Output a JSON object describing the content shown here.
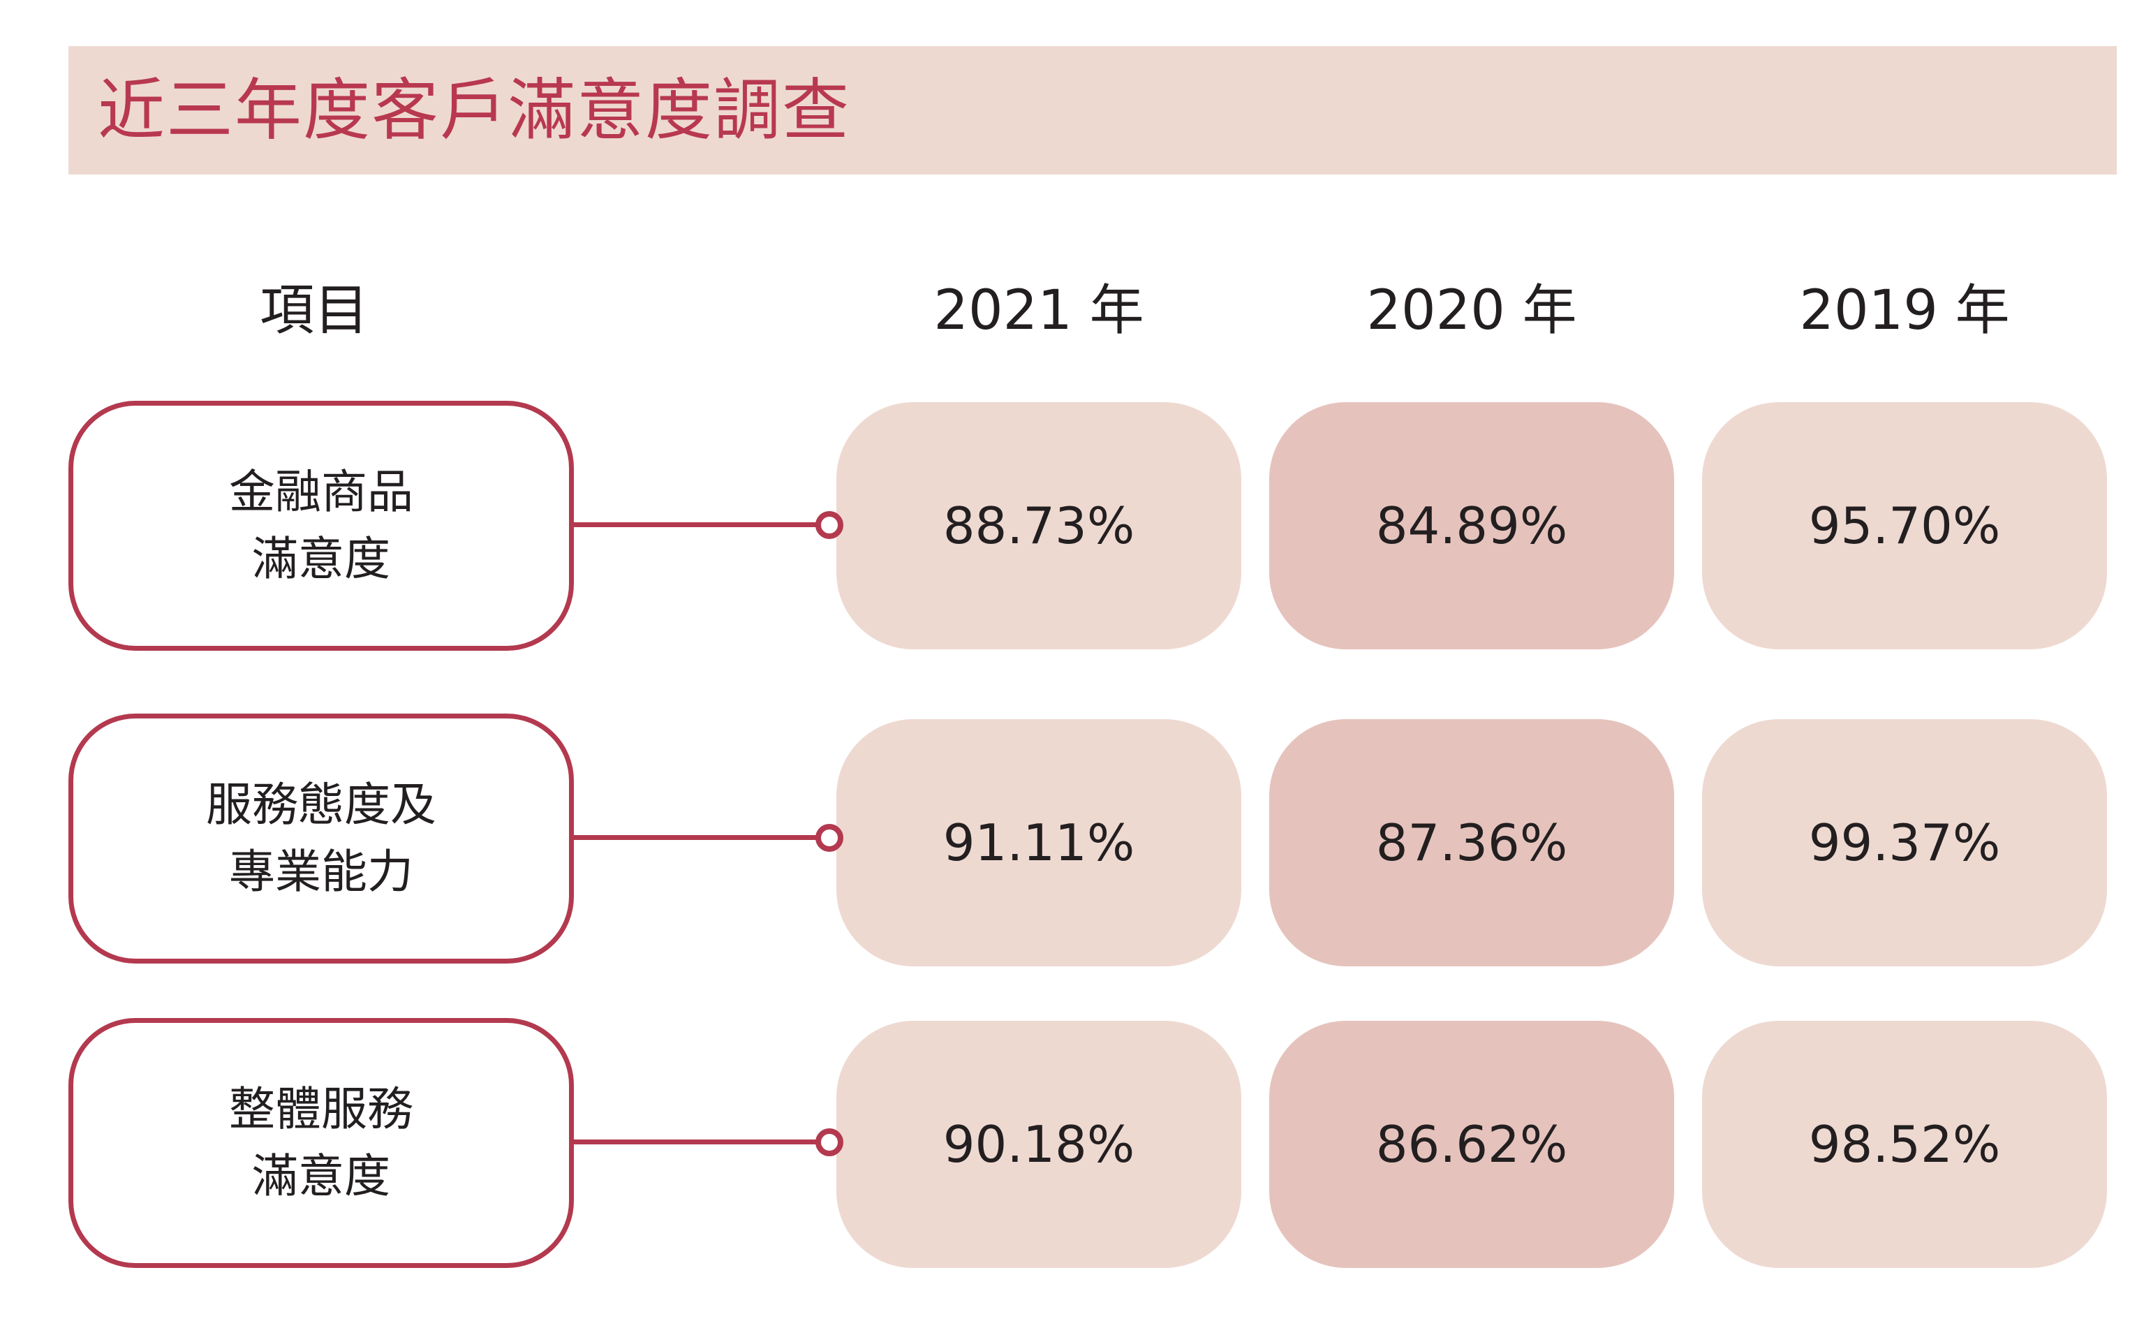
{
  "title": "近三年度客戶滿意度調查",
  "header": {
    "item_label": "項目",
    "years": [
      "2021 年",
      "2020 年",
      "2019 年"
    ]
  },
  "rows": [
    {
      "label_line1": "金融商品",
      "label_line2": "滿意度",
      "values": [
        "88.73%",
        "84.89%",
        "95.70%"
      ]
    },
    {
      "label_line1": "服務態度及",
      "label_line2": "專業能力",
      "values": [
        "91.11%",
        "87.36%",
        "99.37%"
      ]
    },
    {
      "label_line1": "整體服務",
      "label_line2": "滿意度",
      "values": [
        "90.18%",
        "86.62%",
        "98.52%"
      ]
    }
  ],
  "colors": {
    "accent": "#b3394f",
    "title_text": "#b83850",
    "light_fill": "#eed9d1",
    "mid_fill": "#e5c3bc"
  }
}
